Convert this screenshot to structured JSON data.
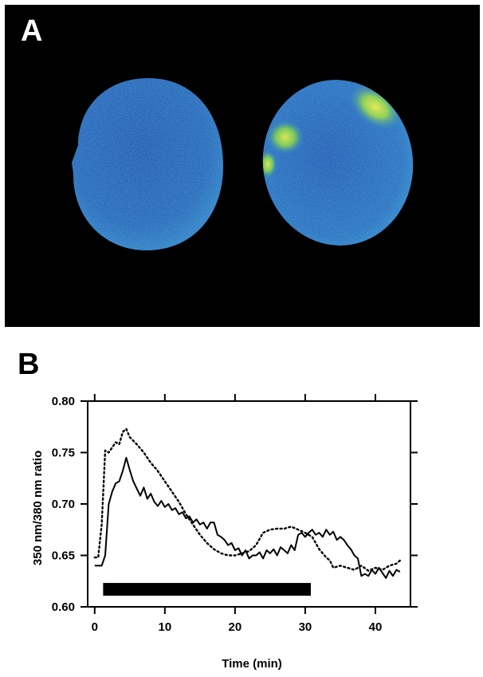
{
  "panels": {
    "a_label": "A",
    "b_label": "B"
  },
  "colors": {
    "background": "#000000",
    "cell_base": "#1f58b0",
    "cell_light": "#2f8fd0",
    "hotspot_green": "#8fd25a",
    "hotspot_yellow": "#e8e85a",
    "line": "#000000"
  },
  "chart_data": {
    "type": "line",
    "title": "",
    "xlabel": "Time (min)",
    "ylabel": "350 nm/380 nm ratio",
    "xlim": [
      -1,
      45
    ],
    "ylim": [
      0.6,
      0.8
    ],
    "xticks": [
      0,
      10,
      20,
      30,
      40
    ],
    "yticks": [
      0.6,
      0.65,
      0.7,
      0.75,
      0.8
    ],
    "ytick_labels": [
      "0.60",
      "0.65",
      "0.70",
      "0.75",
      "0.80"
    ],
    "grid": false,
    "legend": "none",
    "series": [
      {
        "style": "solid",
        "x": [
          0,
          0.5,
          1,
          1.5,
          2,
          2.5,
          3,
          3.5,
          4,
          4.5,
          5,
          5.5,
          6,
          6.5,
          7,
          7.5,
          8,
          8.5,
          9,
          9.5,
          10,
          10.5,
          11,
          11.5,
          12,
          12.5,
          13,
          13.5,
          14,
          14.5,
          15,
          15.5,
          16,
          16.5,
          17,
          17.5,
          18,
          18.5,
          19,
          19.5,
          20,
          20.5,
          21,
          21.5,
          22,
          22.5,
          23,
          23.5,
          24,
          24.5,
          25,
          25.5,
          26,
          26.5,
          27,
          27.5,
          28,
          28.5,
          29,
          29.5,
          30,
          30.5,
          31,
          31.5,
          32,
          32.5,
          33,
          33.5,
          34,
          34.5,
          35,
          35.5,
          36,
          36.5,
          37,
          37.5,
          38,
          38.5,
          39,
          39.5,
          40,
          40.5,
          41,
          41.5,
          42,
          42.5,
          43,
          43.5
        ],
        "y": [
          0.64,
          0.64,
          0.64,
          0.65,
          0.7,
          0.712,
          0.72,
          0.722,
          0.732,
          0.745,
          0.733,
          0.722,
          0.715,
          0.708,
          0.716,
          0.705,
          0.71,
          0.702,
          0.698,
          0.703,
          0.697,
          0.7,
          0.694,
          0.696,
          0.69,
          0.692,
          0.686,
          0.688,
          0.682,
          0.685,
          0.68,
          0.682,
          0.676,
          0.682,
          0.682,
          0.67,
          0.668,
          0.665,
          0.66,
          0.662,
          0.655,
          0.657,
          0.65,
          0.655,
          0.647,
          0.65,
          0.65,
          0.653,
          0.647,
          0.655,
          0.652,
          0.656,
          0.65,
          0.658,
          0.655,
          0.652,
          0.66,
          0.655,
          0.67,
          0.672,
          0.668,
          0.672,
          0.675,
          0.67,
          0.672,
          0.668,
          0.675,
          0.67,
          0.673,
          0.665,
          0.668,
          0.665,
          0.66,
          0.656,
          0.65,
          0.647,
          0.63,
          0.632,
          0.63,
          0.636,
          0.632,
          0.638,
          0.633,
          0.628,
          0.635,
          0.63,
          0.636,
          0.634
        ]
      },
      {
        "style": "dotted",
        "x": [
          0,
          0.5,
          1,
          1.5,
          2,
          2.5,
          3,
          3.5,
          4,
          4.5,
          5,
          6,
          7,
          8,
          9,
          10,
          11,
          12,
          13,
          14,
          15,
          16,
          17,
          18,
          19,
          20,
          21,
          22,
          23,
          24,
          25,
          26,
          27,
          28,
          29,
          30,
          30.5,
          31,
          31.5,
          32,
          32.5,
          33,
          33.5,
          34,
          35,
          36,
          37,
          38,
          39,
          40,
          41,
          42,
          43,
          43.5
        ],
        "y": [
          0.648,
          0.648,
          0.68,
          0.752,
          0.75,
          0.755,
          0.76,
          0.758,
          0.77,
          0.773,
          0.765,
          0.758,
          0.75,
          0.74,
          0.732,
          0.722,
          0.712,
          0.702,
          0.69,
          0.68,
          0.67,
          0.662,
          0.656,
          0.652,
          0.65,
          0.65,
          0.652,
          0.654,
          0.66,
          0.672,
          0.675,
          0.676,
          0.676,
          0.678,
          0.675,
          0.672,
          0.67,
          0.668,
          0.662,
          0.656,
          0.652,
          0.648,
          0.645,
          0.638,
          0.64,
          0.638,
          0.636,
          0.64,
          0.635,
          0.638,
          0.636,
          0.64,
          0.642,
          0.645
        ]
      }
    ],
    "stimulus_bar": {
      "start": 1.2,
      "end": 30.8,
      "y": 0.617
    }
  }
}
